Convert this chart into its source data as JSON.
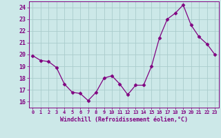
{
  "x": [
    0,
    1,
    2,
    3,
    4,
    5,
    6,
    7,
    8,
    9,
    10,
    11,
    12,
    13,
    14,
    15,
    16,
    17,
    18,
    19,
    20,
    21,
    22,
    23
  ],
  "y": [
    19.9,
    19.5,
    19.4,
    18.9,
    17.5,
    16.8,
    16.7,
    16.1,
    16.8,
    18.0,
    18.2,
    17.5,
    16.6,
    17.4,
    17.4,
    19.0,
    21.4,
    23.0,
    23.5,
    24.2,
    22.5,
    21.5,
    20.9,
    20.0
  ],
  "line_color": "#800080",
  "marker": "D",
  "marker_size": 2.5,
  "bg_color": "#cce8e8",
  "grid_color": "#aacccc",
  "xlabel": "Windchill (Refroidissement éolien,°C)",
  "ylim": [
    15.5,
    24.5
  ],
  "yticks": [
    16,
    17,
    18,
    19,
    20,
    21,
    22,
    23,
    24
  ],
  "xticks": [
    0,
    1,
    2,
    3,
    4,
    5,
    6,
    7,
    8,
    9,
    10,
    11,
    12,
    13,
    14,
    15,
    16,
    17,
    18,
    19,
    20,
    21,
    22,
    23
  ],
  "tick_color": "#800080",
  "label_color": "#800080",
  "axis_color": "#800080"
}
